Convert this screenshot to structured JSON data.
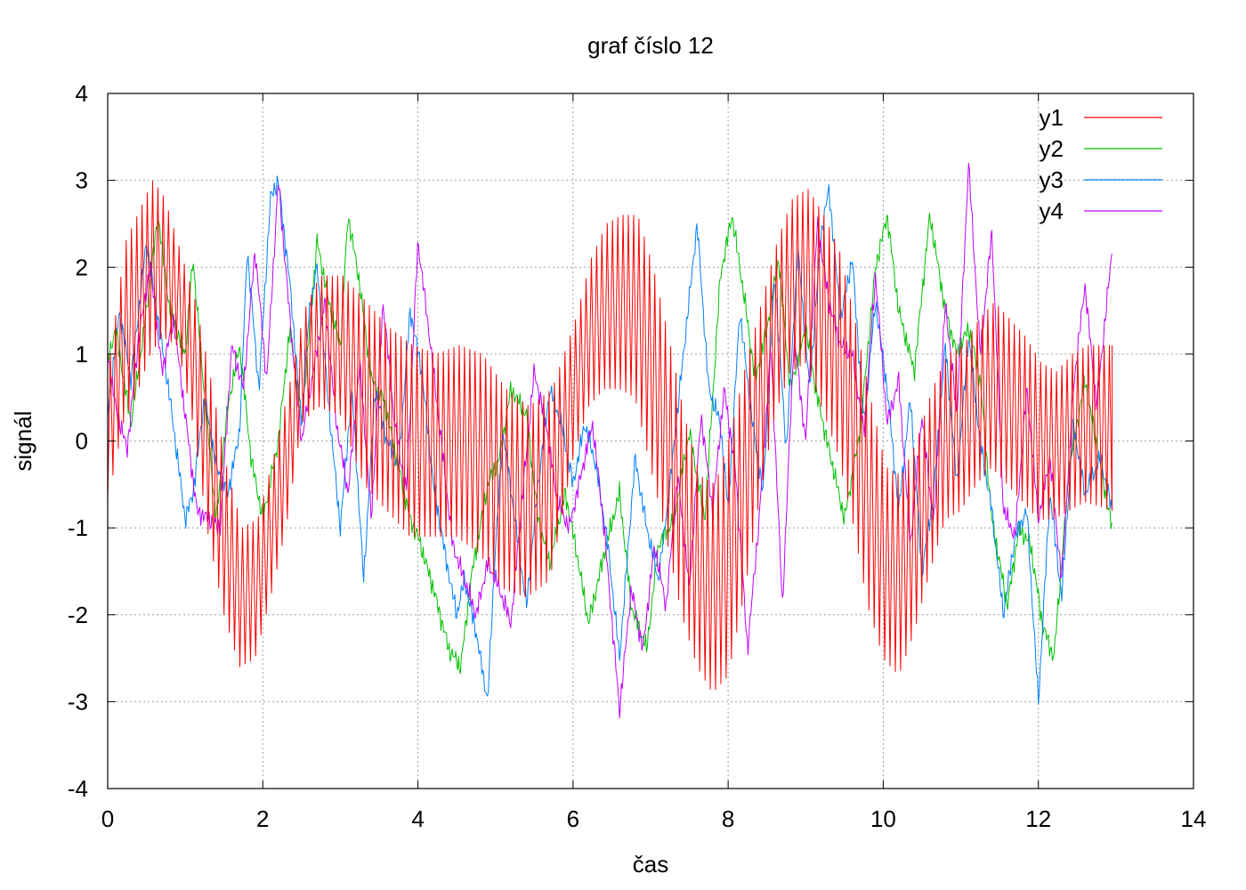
{
  "chart_data": {
    "type": "line",
    "title": "graf číslo 12",
    "xlabel": "čas",
    "ylabel": "signál",
    "xlim": [
      0,
      14
    ],
    "ylim": [
      -4,
      4
    ],
    "xticks": [
      0,
      2,
      4,
      6,
      8,
      10,
      12,
      14
    ],
    "yticks": [
      -4,
      -3,
      -2,
      -1,
      0,
      1,
      2,
      3,
      4
    ],
    "grid": true,
    "legend_position": "top-right",
    "x_end": 12.95,
    "series": [
      {
        "name": "y1",
        "color": "#ff0000",
        "envelope_t": [
          0,
          0.2,
          0.4,
          0.55,
          0.7,
          0.9,
          1.1,
          1.3,
          1.5,
          1.7,
          1.9,
          2.1,
          2.3,
          2.5,
          2.7,
          3.0,
          3.3,
          3.6,
          3.9,
          4.2,
          4.5,
          4.8,
          5.1,
          5.4,
          5.7,
          6.0,
          6.2,
          6.4,
          6.6,
          6.8,
          7.0,
          7.2,
          7.4,
          7.6,
          7.8,
          8.0,
          8.2,
          8.4,
          8.6,
          8.8,
          9.0,
          9.2,
          9.4,
          9.6,
          9.8,
          10.0,
          10.2,
          10.4,
          10.6,
          10.8,
          11.0,
          11.2,
          11.4,
          11.6,
          11.8,
          12.0,
          12.2,
          12.4,
          12.6,
          12.95
        ],
        "upper": [
          1.0,
          2.3,
          2.7,
          3.0,
          2.8,
          2.2,
          1.6,
          0.7,
          -0.3,
          -1.0,
          -0.9,
          -0.2,
          0.6,
          1.5,
          1.9,
          1.9,
          1.6,
          1.3,
          1.1,
          1.0,
          1.1,
          1.0,
          0.6,
          0.4,
          0.6,
          1.4,
          2.1,
          2.5,
          2.6,
          2.6,
          2.0,
          1.2,
          0.3,
          -0.4,
          -0.5,
          0.1,
          0.9,
          1.6,
          2.3,
          2.8,
          2.9,
          2.6,
          2.2,
          1.4,
          0.5,
          -0.3,
          -0.4,
          0.0,
          0.6,
          1.0,
          1.1,
          1.4,
          1.6,
          1.4,
          1.2,
          0.9,
          0.8,
          1.0,
          1.1,
          1.1
        ],
        "lower": [
          -0.7,
          0.2,
          0.6,
          1.0,
          1.2,
          1.1,
          0.2,
          -1.1,
          -2.0,
          -2.6,
          -2.5,
          -1.8,
          -1.0,
          0.2,
          0.4,
          0.3,
          -0.5,
          -0.8,
          -1.1,
          -1.1,
          -1.1,
          -1.3,
          -1.7,
          -1.8,
          -1.6,
          -0.2,
          0.4,
          0.6,
          0.6,
          0.5,
          -0.3,
          -1.1,
          -2.0,
          -2.6,
          -2.9,
          -2.7,
          -1.8,
          -0.7,
          0.3,
          0.8,
          0.9,
          0.4,
          -0.1,
          -0.9,
          -1.9,
          -2.5,
          -2.7,
          -2.2,
          -1.5,
          -0.9,
          -0.8,
          -0.5,
          -0.3,
          -0.5,
          -0.7,
          -0.9,
          -0.9,
          -0.8,
          -0.7,
          -0.8
        ]
      },
      {
        "name": "y2",
        "color": "#00c000",
        "t": [
          0,
          0.1,
          0.3,
          0.5,
          0.65,
          0.8,
          1.0,
          1.1,
          1.25,
          1.4,
          1.55,
          1.7,
          1.85,
          2.0,
          2.2,
          2.35,
          2.5,
          2.7,
          2.85,
          3.0,
          3.1,
          3.25,
          3.4,
          3.55,
          3.75,
          3.9,
          4.0,
          4.2,
          4.4,
          4.55,
          4.7,
          4.9,
          5.05,
          5.2,
          5.4,
          5.55,
          5.7,
          5.9,
          6.05,
          6.2,
          6.4,
          6.6,
          6.75,
          6.95,
          7.1,
          7.3,
          7.5,
          7.7,
          7.9,
          8.05,
          8.2,
          8.35,
          8.5,
          8.65,
          8.8,
          9.0,
          9.15,
          9.3,
          9.5,
          9.7,
          9.9,
          10.05,
          10.2,
          10.4,
          10.6,
          10.8,
          10.95,
          11.1,
          11.25,
          11.4,
          11.6,
          11.75,
          11.9,
          12.05,
          12.2,
          12.4,
          12.6,
          12.8,
          12.95
        ],
        "y": [
          0.9,
          1.3,
          0.2,
          1.5,
          2.6,
          1.5,
          1.0,
          2.1,
          0.5,
          -0.9,
          0.4,
          1.1,
          -0.2,
          -0.9,
          0.0,
          1.3,
          0.2,
          2.3,
          1.6,
          1.1,
          2.6,
          1.8,
          0.7,
          0.5,
          -0.3,
          -0.9,
          -1.1,
          -1.7,
          -2.4,
          -2.6,
          -1.5,
          -0.5,
          -0.2,
          0.6,
          0.3,
          -0.9,
          -1.4,
          -0.6,
          -1.3,
          -2.1,
          -1.3,
          -0.6,
          -1.9,
          -2.4,
          -1.2,
          -0.9,
          0.1,
          -0.9,
          1.9,
          2.6,
          1.7,
          0.7,
          1.3,
          2.1,
          0.6,
          1.3,
          0.5,
          -0.1,
          -0.9,
          0.1,
          2.0,
          2.6,
          1.5,
          0.8,
          2.6,
          1.5,
          1.0,
          1.3,
          0.7,
          -0.9,
          -1.9,
          -1.0,
          -1.2,
          -2.1,
          -2.5,
          -0.3,
          0.7,
          -0.3,
          -1.0
        ]
      },
      {
        "name": "y3",
        "color": "#0080ff",
        "t": [
          0,
          0.15,
          0.3,
          0.5,
          0.65,
          0.8,
          1.0,
          1.1,
          1.25,
          1.4,
          1.55,
          1.7,
          1.8,
          1.95,
          2.1,
          2.2,
          2.35,
          2.5,
          2.6,
          2.7,
          2.85,
          3.0,
          3.15,
          3.3,
          3.45,
          3.6,
          3.75,
          3.9,
          4.05,
          4.2,
          4.35,
          4.5,
          4.6,
          4.75,
          4.9,
          5.0,
          5.1,
          5.25,
          5.4,
          5.55,
          5.7,
          5.85,
          6.0,
          6.15,
          6.3,
          6.45,
          6.6,
          6.8,
          6.95,
          7.1,
          7.25,
          7.4,
          7.6,
          7.75,
          7.9,
          8.0,
          8.15,
          8.3,
          8.45,
          8.6,
          8.75,
          8.9,
          9.05,
          9.2,
          9.3,
          9.45,
          9.6,
          9.75,
          9.9,
          10.05,
          10.2,
          10.35,
          10.5,
          10.65,
          10.8,
          10.95,
          11.1,
          11.25,
          11.4,
          11.55,
          11.7,
          11.85,
          12.0,
          12.15,
          12.3,
          12.45,
          12.6,
          12.8,
          12.95
        ],
        "y": [
          0.3,
          1.5,
          0.7,
          2.3,
          1.4,
          0.5,
          -0.9,
          -0.6,
          0.5,
          -0.3,
          -0.6,
          0.1,
          2.2,
          0.6,
          2.8,
          3.0,
          1.8,
          0.2,
          1.5,
          2.0,
          0.4,
          -1.0,
          0.6,
          -1.6,
          0.6,
          0.0,
          -0.3,
          1.5,
          0.8,
          -0.5,
          -1.3,
          -2.0,
          -1.6,
          -2.2,
          -3.0,
          -1.2,
          0.1,
          -0.9,
          -1.9,
          -0.5,
          0.6,
          0.2,
          -0.5,
          0.2,
          -0.3,
          -1.2,
          -2.5,
          -0.2,
          -1.0,
          -1.6,
          -0.5,
          0.8,
          2.5,
          0.6,
          0.2,
          -0.8,
          1.5,
          0.3,
          -0.6,
          1.9,
          -0.1,
          2.2,
          0.6,
          2.4,
          2.9,
          1.4,
          2.1,
          0.2,
          1.6,
          0.6,
          -0.8,
          0.5,
          -1.5,
          -0.6,
          1.1,
          -0.5,
          1.2,
          0.0,
          -0.8,
          -2.0,
          -1.1,
          -0.8,
          -3.0,
          -0.6,
          -1.8,
          0.2,
          -0.6,
          -0.2,
          -0.8
        ]
      },
      {
        "name": "y4",
        "color": "#c000ff",
        "t": [
          0,
          0.1,
          0.25,
          0.4,
          0.55,
          0.7,
          0.85,
          1.0,
          1.15,
          1.3,
          1.45,
          1.6,
          1.75,
          1.9,
          2.05,
          2.2,
          2.35,
          2.5,
          2.65,
          2.8,
          2.95,
          3.1,
          3.25,
          3.4,
          3.55,
          3.7,
          3.85,
          4.0,
          4.15,
          4.3,
          4.45,
          4.6,
          4.75,
          4.9,
          5.05,
          5.2,
          5.35,
          5.5,
          5.65,
          5.8,
          5.95,
          6.1,
          6.25,
          6.4,
          6.6,
          6.75,
          6.9,
          7.05,
          7.2,
          7.35,
          7.5,
          7.65,
          7.8,
          7.95,
          8.1,
          8.25,
          8.4,
          8.55,
          8.7,
          8.85,
          9.0,
          9.15,
          9.3,
          9.45,
          9.6,
          9.75,
          9.9,
          10.05,
          10.2,
          10.35,
          10.5,
          10.65,
          10.8,
          10.95,
          11.1,
          11.25,
          11.4,
          11.55,
          11.7,
          11.85,
          12.0,
          12.15,
          12.3,
          12.45,
          12.6,
          12.75,
          12.95
        ],
        "y": [
          1.0,
          0.4,
          -0.1,
          1.2,
          2.0,
          0.8,
          1.4,
          0.3,
          -0.8,
          -0.9,
          -1.0,
          1.1,
          0.6,
          2.2,
          0.7,
          3.0,
          1.4,
          0.0,
          0.8,
          1.6,
          0.2,
          -0.6,
          0.9,
          -0.9,
          1.6,
          0.2,
          -0.6,
          2.3,
          1.2,
          0.0,
          -1.2,
          -1.6,
          -2.0,
          -1.4,
          -1.7,
          -2.1,
          -0.6,
          0.8,
          0.2,
          -0.7,
          -1.0,
          -0.4,
          0.2,
          -1.0,
          -3.1,
          -1.7,
          -2.4,
          -1.2,
          -1.9,
          -0.4,
          -1.7,
          0.3,
          -0.8,
          0.6,
          -0.4,
          -2.4,
          -0.9,
          1.1,
          -1.9,
          1.2,
          0.0,
          2.5,
          1.6,
          1.1,
          1.0,
          0.1,
          1.9,
          0.2,
          0.7,
          -1.2,
          0.3,
          -1.0,
          1.6,
          0.3,
          3.2,
          1.0,
          2.4,
          -0.8,
          -1.1,
          0.6,
          -0.9,
          -0.2,
          -1.6,
          0.6,
          1.8,
          0.4,
          2.2
        ]
      }
    ]
  }
}
